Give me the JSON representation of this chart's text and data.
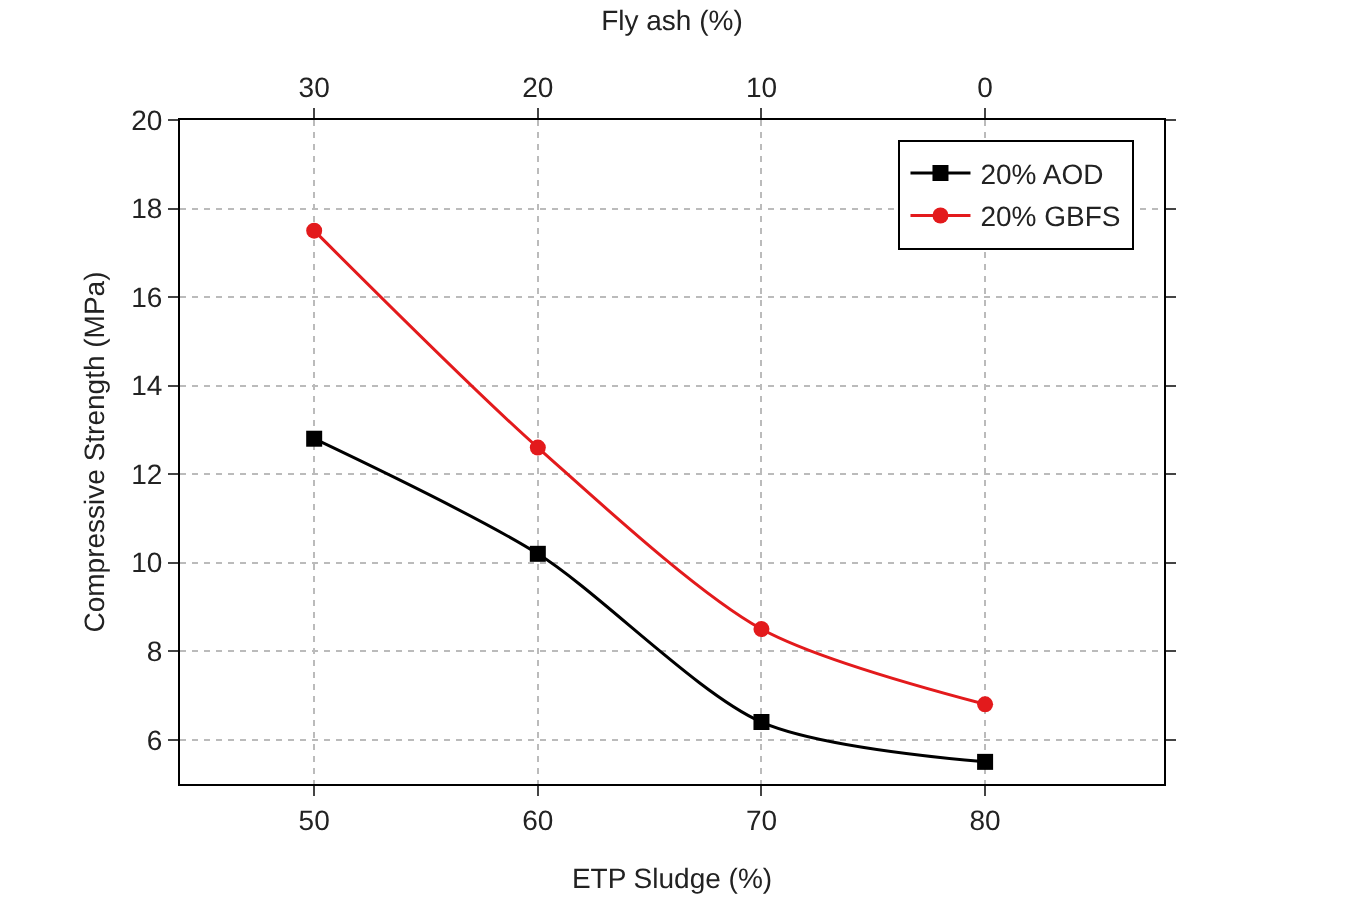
{
  "chart_data": {
    "type": "line",
    "xlabel": "ETP Sludge (%)",
    "ylabel": "Compressive Strength (MPa)",
    "x2label": "Fly ash (%)",
    "x": [
      50,
      60,
      70,
      80
    ],
    "series": [
      {
        "name": "20% AOD",
        "color": "#000000",
        "marker": "square",
        "values": [
          12.8,
          10.2,
          6.4,
          5.5
        ]
      },
      {
        "name": "20% GBFS",
        "color": "#e31a1c",
        "marker": "circle",
        "values": [
          17.5,
          12.6,
          8.5,
          6.8
        ]
      }
    ],
    "xlim": [
      44,
      88
    ],
    "xticks": [
      50,
      60,
      70,
      80
    ],
    "x2lim": [
      36,
      -8
    ],
    "x2ticks": [
      30,
      20,
      10,
      0
    ],
    "ylim": [
      5,
      20
    ],
    "yticks": [
      6,
      8,
      10,
      12,
      14,
      16,
      18,
      20
    ],
    "grid": true,
    "legend": "top right",
    "line_style": "solid"
  }
}
